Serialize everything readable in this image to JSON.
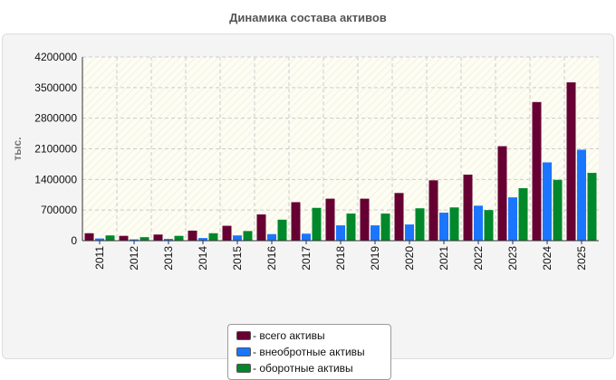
{
  "title": "Динамика состава активов",
  "colors": {
    "panel_bg": "#f4f4f4",
    "plot_bg": "#fdfdf3",
    "grid": "#cccccc"
  },
  "chart_data": {
    "type": "bar",
    "title": "Динамика состава активов",
    "xlabel": "",
    "ylabel": "тыс.",
    "ylim": [
      0,
      4200000
    ],
    "yticks": [
      0,
      700000,
      1400000,
      2100000,
      2800000,
      3500000,
      4200000
    ],
    "grid": true,
    "legend_position": "bottom",
    "categories": [
      "2011",
      "2012",
      "2013",
      "2014",
      "2015",
      "2016",
      "2017",
      "2018",
      "2019",
      "2020",
      "2021",
      "2022",
      "2023",
      "2024",
      "2025"
    ],
    "series": [
      {
        "name": "- всего активы",
        "color": "#660033",
        "values": [
          170000,
          110000,
          140000,
          230000,
          340000,
          600000,
          880000,
          960000,
          960000,
          1090000,
          1380000,
          1510000,
          2160000,
          3170000,
          3620000
        ]
      },
      {
        "name": "- внеобротные активы",
        "color": "#1a75ff",
        "values": [
          50000,
          30000,
          40000,
          60000,
          120000,
          150000,
          160000,
          350000,
          350000,
          370000,
          640000,
          800000,
          990000,
          1790000,
          2080000
        ]
      },
      {
        "name": "- оборотные активы",
        "color": "#00882b",
        "values": [
          120000,
          80000,
          110000,
          170000,
          220000,
          480000,
          750000,
          620000,
          620000,
          740000,
          760000,
          700000,
          1200000,
          1390000,
          1550000
        ]
      }
    ]
  }
}
